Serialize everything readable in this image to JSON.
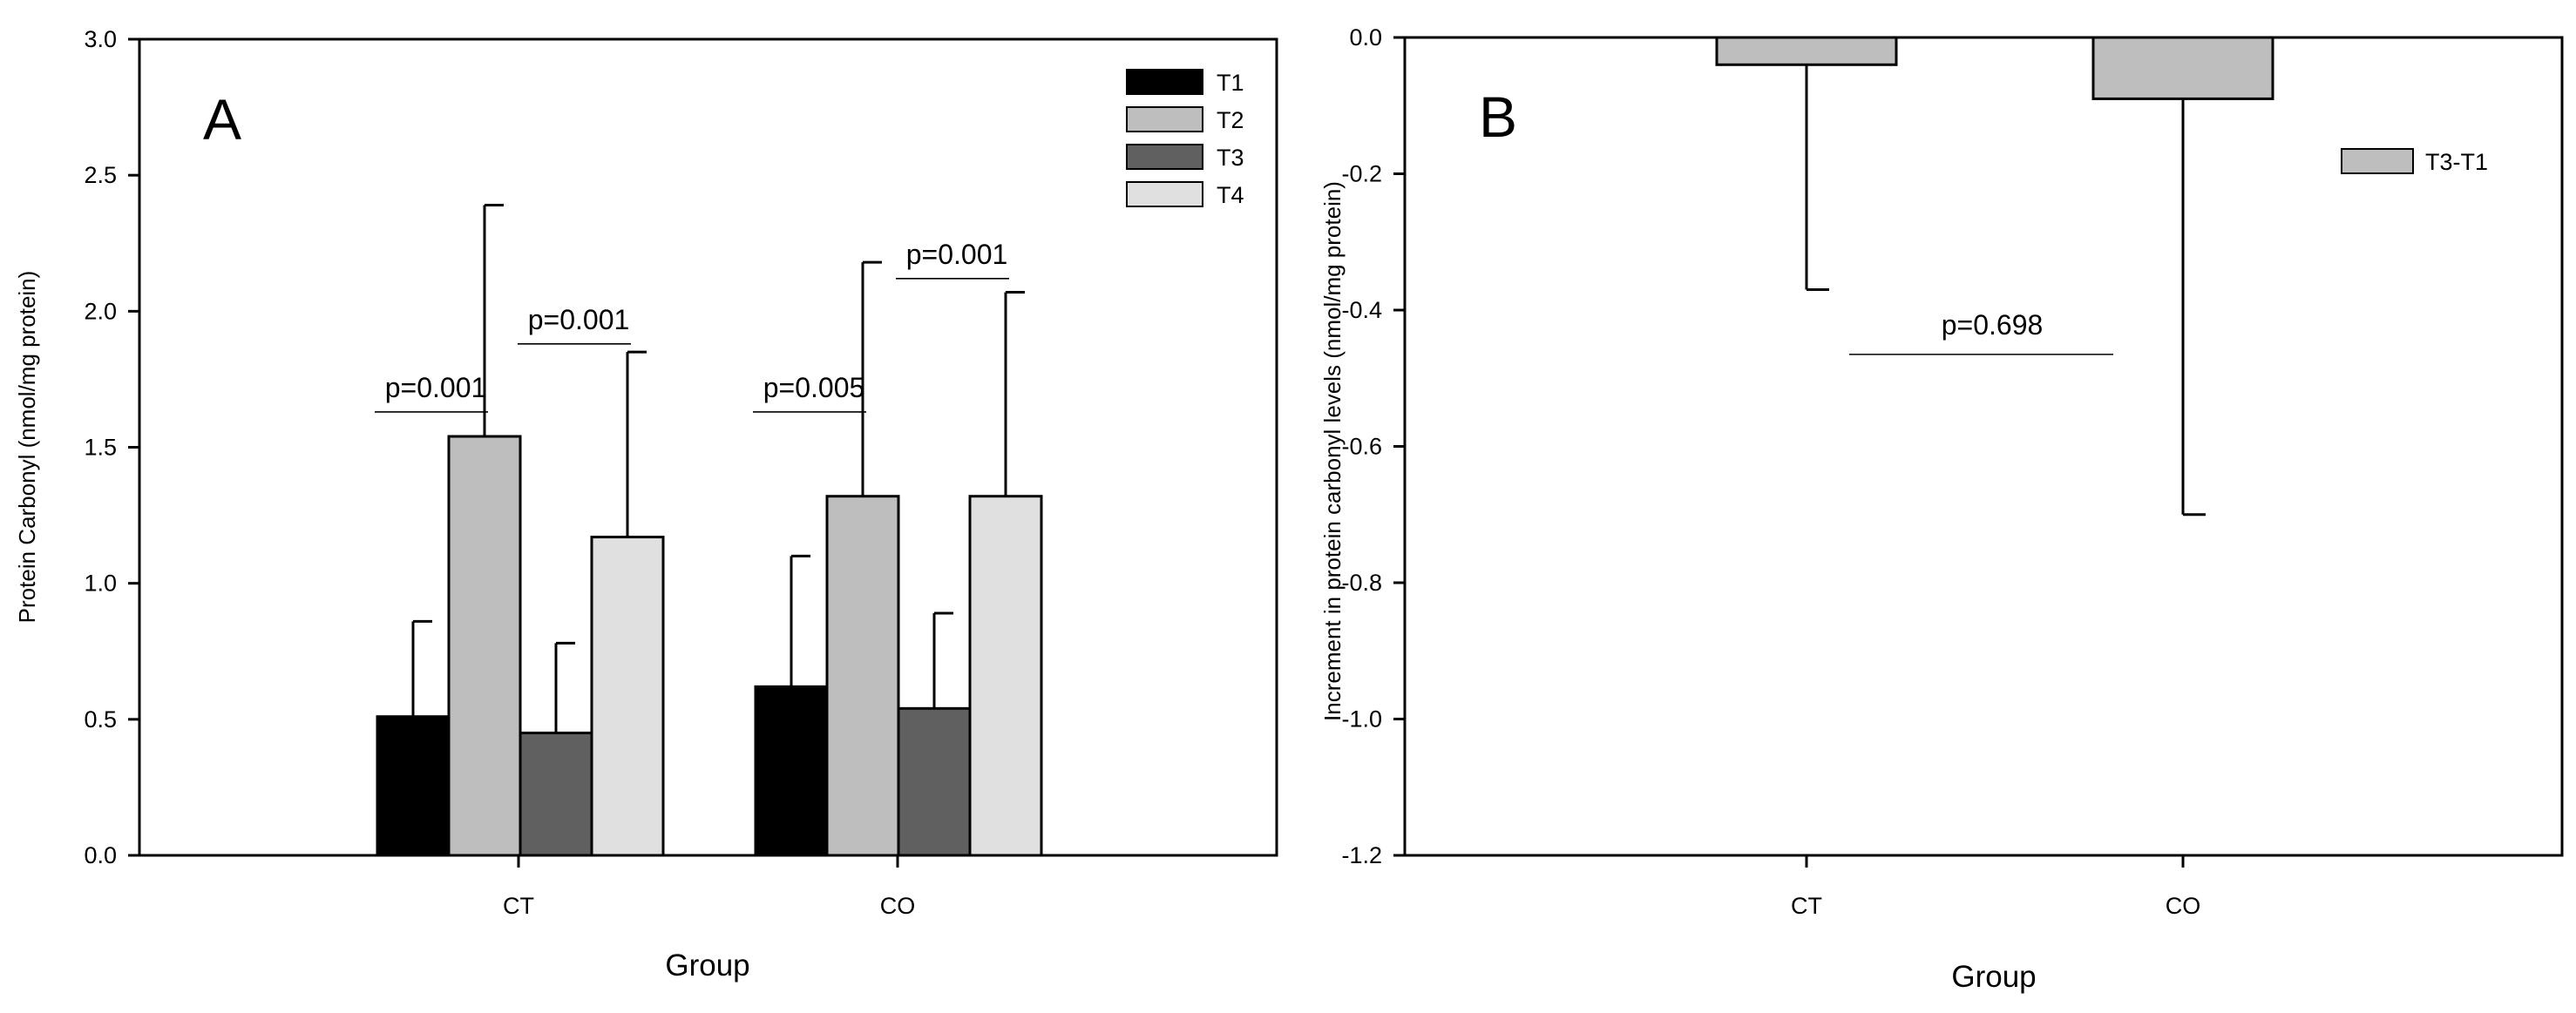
{
  "chart_data": [
    {
      "panel": "A",
      "type": "bar",
      "xlabel": "Group",
      "ylabel": "Protein Carbonyl (nmol/mg protein)",
      "ylim": [
        0,
        3.0
      ],
      "yticks": [
        "0.0",
        "0.5",
        "1.0",
        "1.5",
        "2.0",
        "2.5",
        "3.0"
      ],
      "categories": [
        "CT",
        "CO"
      ],
      "series": [
        {
          "name": "T1",
          "color": "#000000",
          "values": [
            0.51,
            0.62
          ],
          "errors": [
            0.35,
            0.48
          ]
        },
        {
          "name": "T2",
          "color": "#bebebe",
          "values": [
            1.54,
            1.32
          ],
          "errors": [
            0.85,
            0.86
          ]
        },
        {
          "name": "T3",
          "color": "#606060",
          "values": [
            0.45,
            0.54
          ],
          "errors": [
            0.33,
            0.35
          ]
        },
        {
          "name": "T4",
          "color": "#e0e0e0",
          "values": [
            1.17,
            1.32
          ],
          "errors": [
            0.68,
            0.75
          ]
        }
      ],
      "legend_position": "top-right",
      "annotations": [
        {
          "text": "p=0.001",
          "group": "CT",
          "between": [
            "T1",
            "T2"
          ],
          "level": 1.63
        },
        {
          "text": "p=0.001",
          "group": "CT",
          "between": [
            "T3",
            "T4"
          ],
          "level": 1.88
        },
        {
          "text": "p=0.005",
          "group": "CO",
          "between": [
            "T1",
            "T2"
          ],
          "level": 1.63
        },
        {
          "text": "p=0.001",
          "group": "CO",
          "between": [
            "T3",
            "T4"
          ],
          "level": 2.12
        }
      ]
    },
    {
      "panel": "B",
      "type": "bar",
      "xlabel": "Group",
      "ylabel": "Increment in protein carbonyl levels (nmol/mg protein)",
      "ylim": [
        -1.2,
        0.0
      ],
      "yticks": [
        "0.0",
        "-0.2",
        "-0.4",
        "-0.6",
        "-0.8",
        "-1.0",
        "-1.2"
      ],
      "categories": [
        "CT",
        "CO"
      ],
      "series": [
        {
          "name": "T3-T1",
          "color": "#bebebe",
          "values": [
            -0.04,
            -0.09
          ],
          "errors": [
            0.33,
            0.61
          ]
        }
      ],
      "legend_position": "top-right",
      "annotations": [
        {
          "text": "p=0.698",
          "between": [
            "CT",
            "CO"
          ],
          "level": -0.465
        }
      ]
    }
  ]
}
